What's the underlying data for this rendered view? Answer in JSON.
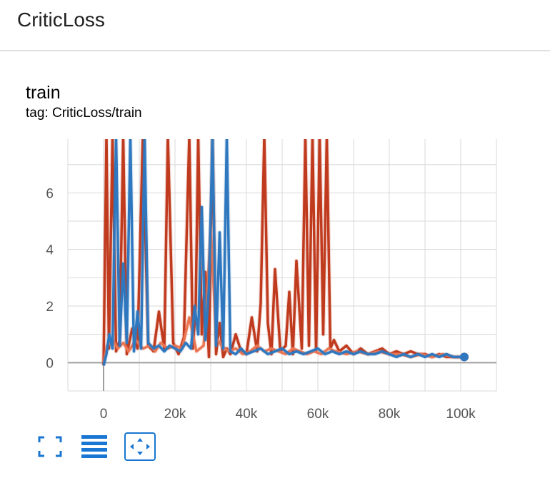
{
  "header": {
    "title": "CriticLoss"
  },
  "card": {
    "title": "train",
    "tag": "tag: CriticLoss/train"
  },
  "toolbar": [
    {
      "icon": "fullscreen-icon"
    },
    {
      "icon": "lines-icon"
    },
    {
      "icon": "fit-domain-icon"
    }
  ],
  "colors": {
    "orange": "#c03a1e",
    "light_orange": "#ec7652",
    "blue": "#2f78bf",
    "grid": "#d9d9d9",
    "axis": "#9e9e9e"
  },
  "chart_data": {
    "type": "line",
    "title": "",
    "xlabel": "",
    "ylabel": "",
    "xlim": [
      -10000,
      110000
    ],
    "ylim": [
      -1,
      7.9
    ],
    "xticks": [
      0,
      20000,
      40000,
      60000,
      80000,
      100000
    ],
    "xtick_labels": [
      "0",
      "20k",
      "40k",
      "60k",
      "80k",
      "100k"
    ],
    "yticks": [
      0,
      2,
      4,
      6
    ],
    "ytick_labels": [
      "0",
      "2",
      "4",
      "6"
    ],
    "grid": true,
    "legend": "none",
    "series": [
      {
        "color": "#c03a1e",
        "x": [
          0,
          800,
          1500,
          2500,
          3500,
          4500,
          5500,
          6500,
          8000,
          9500,
          11000,
          12500,
          14000,
          15500,
          17000,
          18000,
          19500,
          21000,
          22500,
          24000,
          25000,
          25800,
          26500,
          27500,
          28500,
          29500,
          30500,
          31500,
          32500,
          33500,
          34500,
          35500,
          37000,
          38500,
          40000,
          41500,
          43000,
          44000,
          45000,
          46000,
          47000,
          48000,
          49500,
          51000,
          52000,
          53000,
          54000,
          55500,
          56500,
          57500,
          58500,
          59500,
          60500,
          61500,
          62500,
          63500,
          64500,
          66000,
          68000,
          70000,
          72000,
          74000,
          76000,
          78000,
          80000,
          82000,
          84000,
          86000,
          88000,
          90000,
          92000,
          94000,
          96000,
          98000,
          100000,
          101000
        ],
        "values": [
          -0.1,
          8,
          0.5,
          7.9,
          0.4,
          0.8,
          8,
          0.3,
          1.2,
          0.5,
          8,
          0.6,
          0.4,
          1.8,
          0.5,
          8,
          0.7,
          0.3,
          0.9,
          8,
          0.5,
          2.0,
          8,
          1.0,
          3.2,
          0.2,
          8,
          0.3,
          1.4,
          0.2,
          0.5,
          0.3,
          1.0,
          0.4,
          0.3,
          1.6,
          0.4,
          2.1,
          8,
          1.4,
          0.3,
          3.3,
          0.4,
          0.6,
          2.5,
          0.3,
          3.6,
          0.5,
          8,
          0.6,
          8,
          0.4,
          8,
          1.0,
          8,
          0.5,
          0.8,
          0.4,
          0.6,
          0.3,
          0.5,
          0.3,
          0.4,
          0.5,
          0.3,
          0.4,
          0.3,
          0.4,
          0.3,
          0.3,
          0.2,
          0.3,
          0.2,
          0.2,
          0.2,
          0.2
        ]
      },
      {
        "color": "#ec7652",
        "x": [
          0,
          1000,
          2500,
          4000,
          5500,
          7000,
          9000,
          11000,
          13000,
          14500,
          16000,
          18000,
          20000,
          22000,
          24000,
          26000,
          28000,
          29000,
          30000,
          31500,
          33000,
          35000,
          37000,
          39000,
          41000,
          43000,
          45000,
          47000,
          49000,
          51000,
          53000,
          55000,
          57000,
          59000,
          61000,
          63000,
          65000,
          68000,
          71000,
          74000,
          77000,
          80000,
          83000,
          86000,
          89000,
          92000,
          95000,
          98000,
          101000
        ],
        "values": [
          0.0,
          0.6,
          0.8,
          0.5,
          0.7,
          0.4,
          0.8,
          0.5,
          0.6,
          0.4,
          0.7,
          0.5,
          0.6,
          0.5,
          1.6,
          0.4,
          0.6,
          2.3,
          4.8,
          0.9,
          0.6,
          0.4,
          0.5,
          0.3,
          0.4,
          0.6,
          0.4,
          0.5,
          0.4,
          0.3,
          0.5,
          0.4,
          0.3,
          0.4,
          0.3,
          0.5,
          0.4,
          0.3,
          0.4,
          0.3,
          0.4,
          0.3,
          0.3,
          0.2,
          0.3,
          0.2,
          0.3,
          0.2,
          0.2
        ]
      },
      {
        "color": "#2f78bf",
        "x": [
          0,
          800,
          1600,
          2500,
          3500,
          4500,
          5500,
          6500,
          7500,
          8500,
          9500,
          10500,
          11500,
          12500,
          14000,
          15500,
          17000,
          18500,
          20000,
          21500,
          23000,
          24500,
          25500,
          26500,
          27500,
          28500,
          29500,
          30500,
          31500,
          32500,
          33500,
          34500,
          35500,
          37000,
          38500,
          40000,
          42000,
          44000,
          46000,
          48000,
          50000,
          52000,
          54000,
          56000,
          58000,
          60000,
          62000,
          64000,
          66000,
          68000,
          70000,
          72000,
          74000,
          76000,
          78000,
          80000,
          82000,
          84000,
          86000,
          88000,
          90000,
          92000,
          94000,
          96000,
          98000,
          100000,
          101000
        ],
        "values": [
          -0.1,
          0.3,
          1.0,
          0.5,
          8,
          0.6,
          3.5,
          0.7,
          8,
          0.4,
          1.8,
          0.5,
          8,
          0.7,
          0.5,
          0.6,
          0.4,
          0.6,
          0.5,
          0.4,
          0.7,
          0.5,
          2.0,
          1.0,
          5.5,
          0.8,
          2.6,
          8,
          0.6,
          4.6,
          0.5,
          8,
          0.4,
          0.3,
          0.5,
          0.3,
          0.4,
          0.5,
          0.3,
          0.4,
          0.5,
          0.3,
          0.4,
          0.3,
          0.4,
          0.5,
          0.3,
          0.4,
          0.3,
          0.4,
          0.3,
          0.4,
          0.3,
          0.3,
          0.4,
          0.3,
          0.2,
          0.3,
          0.2,
          0.3,
          0.2,
          0.3,
          0.2,
          0.3,
          0.2,
          0.2,
          0.2
        ]
      }
    ]
  }
}
